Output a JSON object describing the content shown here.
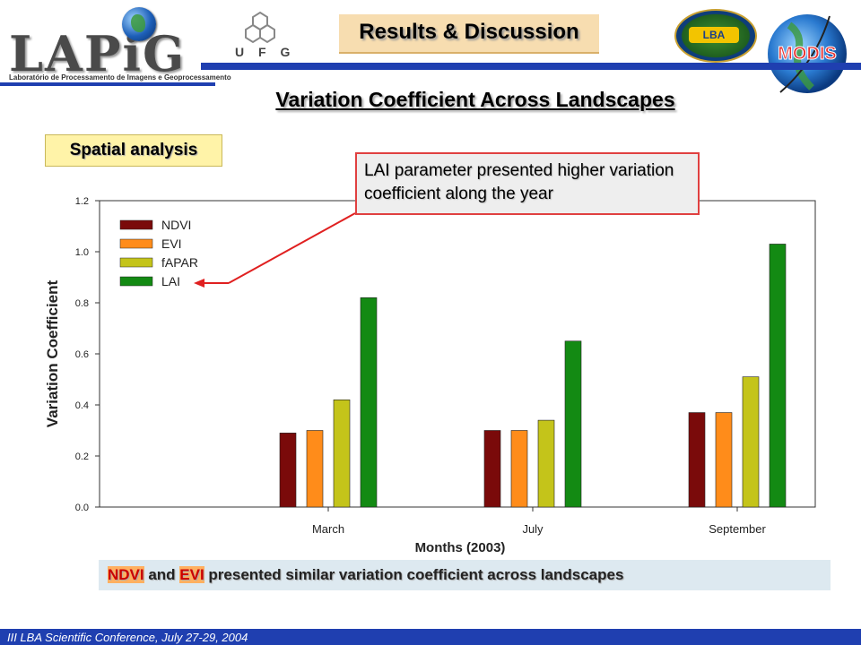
{
  "header": {
    "title": "Results & Discussion",
    "lapig_name": "LAPiG",
    "lapig_subtitle": "Laboratório de Processamento de Imagens e Geoprocessamento",
    "ufg_text": "U F G",
    "lba_text": "LBA",
    "modis_text": "MODIS"
  },
  "subtitle": "Variation Coefficient Across Landscapes",
  "section_label": "Spatial analysis",
  "callout": "LAI parameter presented higher variation coefficient along the year",
  "footnote": {
    "ndvi": "NDVI",
    "and": " and ",
    "evi": "EVI",
    "rest": " presented similar variation coefficient across landscapes"
  },
  "footer": "III LBA Scientific Conference, July 27-29, 2004",
  "colors": {
    "NDVI": "#7a0a0a",
    "EVI": "#ff8c1a",
    "fAPAR": "#c4c41a",
    "LAI": "#138a13",
    "accent_blue": "#1f3fb0"
  },
  "chart_data": {
    "type": "bar",
    "categories": [
      "March",
      "July",
      "September"
    ],
    "series": [
      {
        "name": "NDVI",
        "values": [
          0.29,
          0.3,
          0.37
        ]
      },
      {
        "name": "EVI",
        "values": [
          0.3,
          0.3,
          0.37
        ]
      },
      {
        "name": "fAPAR",
        "values": [
          0.42,
          0.34,
          0.51
        ]
      },
      {
        "name": "LAI",
        "values": [
          0.82,
          0.65,
          1.03
        ]
      }
    ],
    "xlabel": "Months (2003)",
    "ylabel": "Variation Coefficient",
    "ylim": [
      0.0,
      1.2
    ],
    "yticks": [
      "0.0",
      "0.2",
      "0.4",
      "0.6",
      "0.8",
      "1.0",
      "1.2"
    ],
    "legend": "top-left",
    "grid": false
  }
}
